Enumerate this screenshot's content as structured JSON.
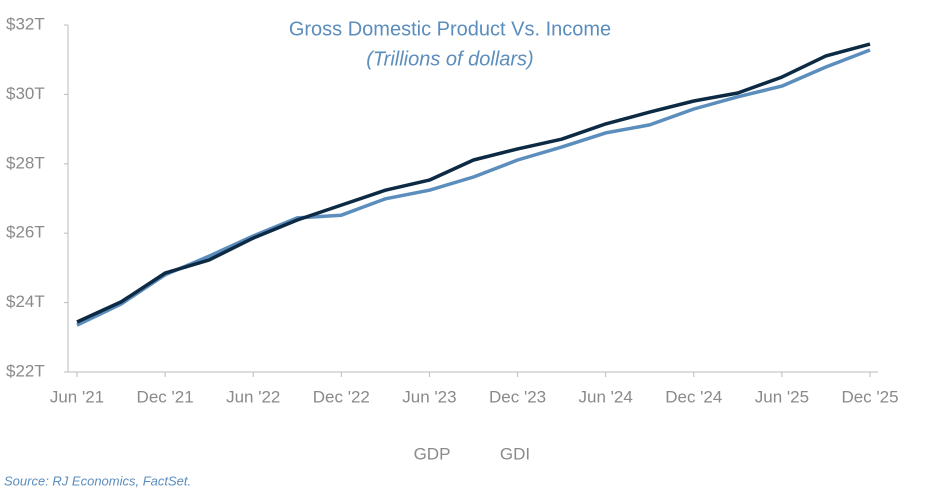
{
  "chart_data": {
    "type": "line",
    "title": "Gross Domestic Product Vs. Income",
    "subtitle": "(Trillions of dollars)",
    "categories": [
      "Jun '21",
      null,
      "Dec '21",
      null,
      "Jun '22",
      null,
      "Dec '22",
      null,
      "Jun '23",
      null,
      "Dec '23",
      null,
      "Jun '24",
      null,
      "Dec '24",
      null,
      "Jun '25",
      null,
      "Dec '25"
    ],
    "series": [
      {
        "name": "GDP",
        "color": "#0d2a45",
        "values": [
          23.44,
          24.02,
          24.85,
          25.23,
          25.86,
          26.38,
          26.81,
          27.24,
          27.53,
          28.11,
          28.43,
          28.71,
          29.15,
          29.49,
          29.81,
          30.04,
          30.5,
          31.11,
          31.45
        ]
      },
      {
        "name": "GDI",
        "color": "#5b8dbd",
        "values": [
          23.35,
          23.96,
          24.8,
          25.34,
          25.92,
          26.44,
          26.52,
          26.99,
          27.24,
          27.62,
          28.11,
          28.48,
          28.89,
          29.12,
          29.58,
          29.93,
          30.24,
          30.79,
          31.28
        ]
      }
    ],
    "ylim": [
      22,
      32
    ],
    "yticks": [
      {
        "value": 22,
        "label": "$22T"
      },
      {
        "value": 24,
        "label": "$24T"
      },
      {
        "value": 26,
        "label": "$26T"
      },
      {
        "value": 28,
        "label": "$28T"
      },
      {
        "value": 30,
        "label": "$30T"
      },
      {
        "value": 32,
        "label": "$32T"
      }
    ],
    "grid": false,
    "source": "Source: RJ Economics, FactSet."
  }
}
